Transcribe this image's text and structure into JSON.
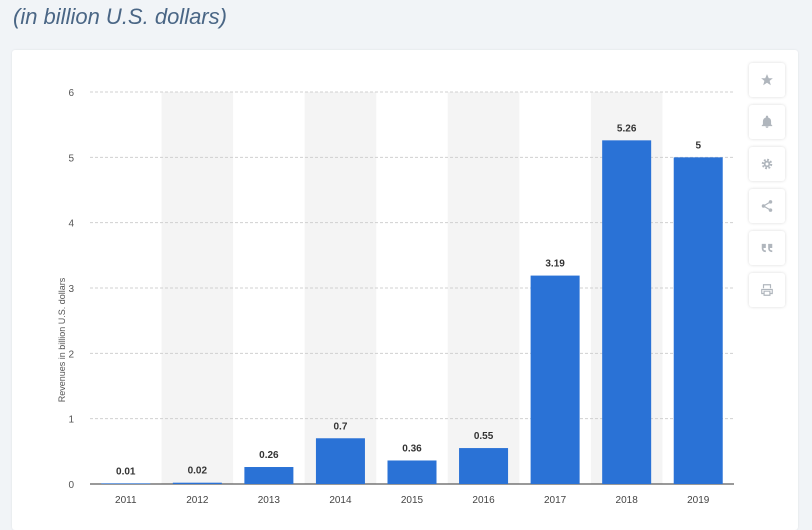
{
  "subtitle": "(in billion U.S. dollars)",
  "toolbar": {
    "icons": [
      "star-icon",
      "bell-icon",
      "gear-icon",
      "share-icon",
      "quote-icon",
      "print-icon"
    ]
  },
  "colors": {
    "bar": "#2a72d6",
    "band": "#f4f4f4",
    "grid": "#d0d0d0"
  },
  "chart_data": {
    "type": "bar",
    "title": "",
    "xlabel": "",
    "ylabel": "Revenues in billion U.S. dollars",
    "categories": [
      "2011",
      "2012",
      "2013",
      "2014",
      "2015",
      "2016",
      "2017",
      "2018",
      "2019"
    ],
    "values": [
      0.01,
      0.02,
      0.26,
      0.7,
      0.36,
      0.55,
      3.19,
      5.26,
      5
    ],
    "labels": [
      "0.01",
      "0.02",
      "0.26",
      "0.7",
      "0.36",
      "0.55",
      "3.19",
      "5.26",
      "5"
    ],
    "yticks": [
      "0",
      "1",
      "2",
      "3",
      "4",
      "5",
      "6"
    ],
    "ylim": [
      0,
      6
    ],
    "grid": true,
    "legend": "none"
  }
}
